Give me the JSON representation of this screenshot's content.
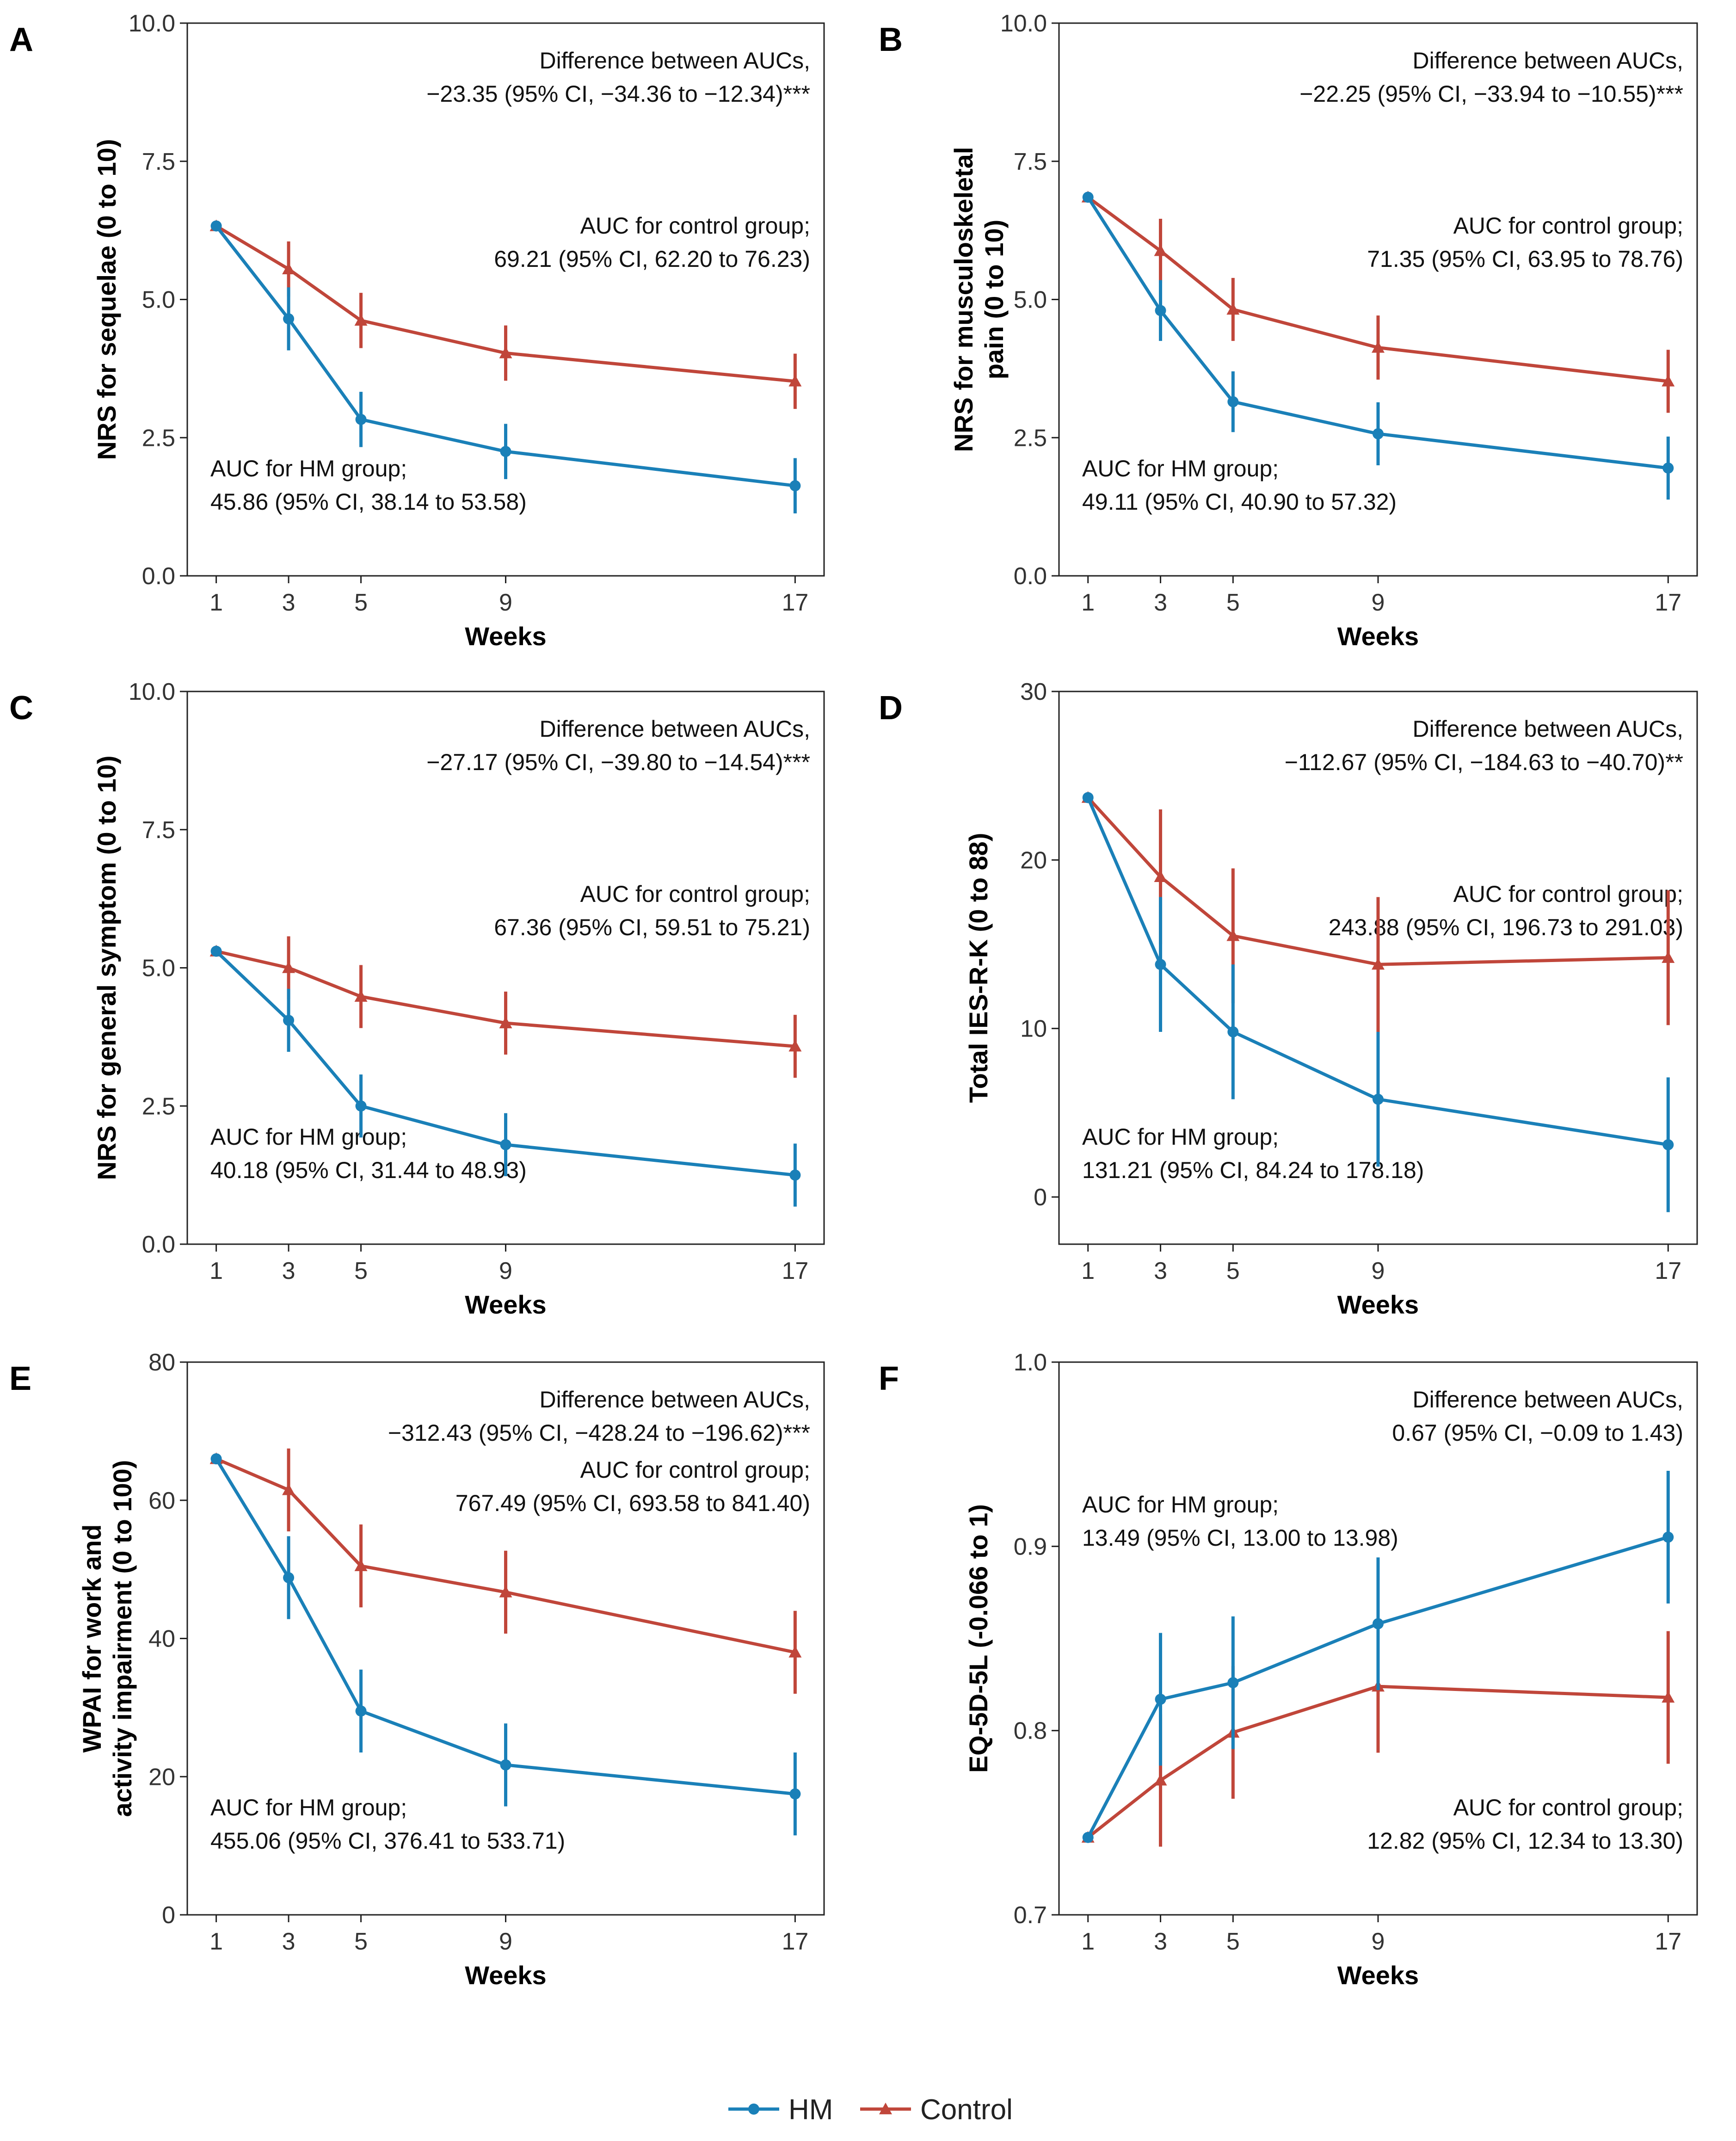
{
  "colors": {
    "hm": "#1a80b8",
    "control": "#c0463a",
    "axis": "#222222"
  },
  "legend": [
    {
      "key": "hm",
      "label": "HM",
      "marker": "circle"
    },
    {
      "key": "control",
      "label": "Control",
      "marker": "triangle"
    }
  ],
  "chart_data": [
    {
      "panel": "A",
      "type": "line",
      "xlabel": "Weeks",
      "ylabel": [
        "NRS for sequelae (0 to 10)"
      ],
      "x": [
        1,
        3,
        5,
        9,
        17
      ],
      "xlim": [
        0.2,
        17.8
      ],
      "ylim": [
        0,
        10
      ],
      "yticks": [
        "0.0",
        "2.5",
        "5.0",
        "7.5",
        "10.0"
      ],
      "ytick_values": [
        0,
        2.5,
        5,
        7.5,
        10
      ],
      "series": [
        {
          "key": "hm",
          "name": "HM",
          "values": [
            6.33,
            4.65,
            2.83,
            2.25,
            1.63
          ],
          "lower": [
            6.33,
            4.08,
            2.33,
            1.75,
            1.13
          ],
          "upper": [
            6.33,
            5.22,
            3.33,
            2.75,
            2.13
          ]
        },
        {
          "key": "control",
          "name": "Control",
          "values": [
            6.33,
            5.55,
            4.62,
            4.03,
            3.52
          ],
          "lower": [
            6.33,
            5.05,
            4.12,
            3.53,
            3.02
          ],
          "upper": [
            6.33,
            6.05,
            5.12,
            4.53,
            4.02
          ]
        }
      ],
      "annotations": [
        {
          "pos": "top-right",
          "lines": [
            "Difference between AUCs,",
            "−23.35 (95% CI, −34.36 to −12.34)***"
          ]
        },
        {
          "pos": "mid-right",
          "lines": [
            "AUC for control group;",
            "69.21 (95% CI, 62.20 to 76.23)"
          ]
        },
        {
          "pos": "bottom-left",
          "lines": [
            "AUC for HM group;",
            "45.86 (95% CI, 38.14 to 53.58)"
          ]
        }
      ]
    },
    {
      "panel": "B",
      "type": "line",
      "xlabel": "Weeks",
      "ylabel": [
        "NRS for musculoskeletal",
        "pain (0 to 10)"
      ],
      "x": [
        1,
        3,
        5,
        9,
        17
      ],
      "xlim": [
        0.2,
        17.8
      ],
      "ylim": [
        0,
        10
      ],
      "yticks": [
        "0.0",
        "2.5",
        "5.0",
        "7.5",
        "10.0"
      ],
      "ytick_values": [
        0,
        2.5,
        5,
        7.5,
        10
      ],
      "series": [
        {
          "key": "hm",
          "name": "HM",
          "values": [
            6.85,
            4.8,
            3.15,
            2.57,
            1.95
          ],
          "lower": [
            6.85,
            4.25,
            2.6,
            2.0,
            1.38
          ],
          "upper": [
            6.85,
            5.35,
            3.7,
            3.14,
            2.52
          ]
        },
        {
          "key": "control",
          "name": "Control",
          "values": [
            6.85,
            5.88,
            4.82,
            4.13,
            3.52
          ],
          "lower": [
            6.85,
            5.3,
            4.25,
            3.55,
            2.95
          ],
          "upper": [
            6.85,
            6.46,
            5.39,
            4.71,
            4.09
          ]
        }
      ],
      "annotations": [
        {
          "pos": "top-right",
          "lines": [
            "Difference between AUCs,",
            "−22.25 (95% CI, −33.94 to −10.55)***"
          ]
        },
        {
          "pos": "mid-right",
          "lines": [
            "AUC for control group;",
            "71.35 (95% CI, 63.95 to 78.76)"
          ]
        },
        {
          "pos": "bottom-left",
          "lines": [
            "AUC for HM group;",
            "49.11 (95% CI, 40.90 to 57.32)"
          ]
        }
      ]
    },
    {
      "panel": "C",
      "type": "line",
      "xlabel": "Weeks",
      "ylabel": [
        "NRS for general symptom (0 to 10)"
      ],
      "x": [
        1,
        3,
        5,
        9,
        17
      ],
      "xlim": [
        0.2,
        17.8
      ],
      "ylim": [
        0,
        10
      ],
      "yticks": [
        "0.0",
        "2.5",
        "5.0",
        "7.5",
        "10.0"
      ],
      "ytick_values": [
        0,
        2.5,
        5,
        7.5,
        10
      ],
      "series": [
        {
          "key": "hm",
          "name": "HM",
          "values": [
            5.3,
            4.05,
            2.5,
            1.8,
            1.25
          ],
          "lower": [
            5.3,
            3.48,
            1.93,
            1.23,
            0.68
          ],
          "upper": [
            5.3,
            4.62,
            3.07,
            2.37,
            1.82
          ]
        },
        {
          "key": "control",
          "name": "Control",
          "values": [
            5.3,
            5.0,
            4.48,
            4.0,
            3.58
          ],
          "lower": [
            5.3,
            4.43,
            3.91,
            3.43,
            3.01
          ],
          "upper": [
            5.3,
            5.57,
            5.05,
            4.57,
            4.15
          ]
        }
      ],
      "annotations": [
        {
          "pos": "top-right",
          "lines": [
            "Difference between AUCs,",
            "−27.17 (95% CI, −39.80 to −14.54)***"
          ]
        },
        {
          "pos": "mid-right",
          "lines": [
            "AUC for control group;",
            "67.36 (95% CI, 59.51 to 75.21)"
          ]
        },
        {
          "pos": "bottom-left",
          "lines": [
            "AUC for HM group;",
            "40.18 (95% CI, 31.44 to 48.93)"
          ]
        }
      ]
    },
    {
      "panel": "D",
      "type": "line",
      "xlabel": "Weeks",
      "ylabel": [
        "Total IES-R-K (0 to 88)"
      ],
      "x": [
        1,
        3,
        5,
        9,
        17
      ],
      "xlim": [
        0.2,
        17.8
      ],
      "ylim": [
        -2.8,
        30
      ],
      "yticks": [
        "0",
        "10",
        "20",
        "30"
      ],
      "ytick_values": [
        0,
        10,
        20,
        30
      ],
      "series": [
        {
          "key": "hm",
          "name": "HM",
          "values": [
            23.7,
            13.8,
            9.8,
            5.8,
            3.1
          ],
          "lower": [
            23.7,
            9.8,
            5.8,
            1.8,
            -0.9
          ],
          "upper": [
            23.7,
            17.8,
            13.8,
            9.8,
            7.1
          ]
        },
        {
          "key": "control",
          "name": "Control",
          "values": [
            23.7,
            19.0,
            15.5,
            13.8,
            14.2
          ],
          "lower": [
            23.7,
            15.0,
            11.5,
            9.8,
            10.2
          ],
          "upper": [
            23.7,
            23.0,
            19.5,
            17.8,
            18.2
          ]
        }
      ],
      "annotations": [
        {
          "pos": "top-right",
          "lines": [
            "Difference between AUCs,",
            "−112.67 (95% CI, −184.63 to −40.70)**"
          ]
        },
        {
          "pos": "mid-right",
          "lines": [
            "AUC for control group;",
            "243.88 (95% CI, 196.73 to 291.03)"
          ]
        },
        {
          "pos": "bottom-left",
          "lines": [
            "AUC for HM group;",
            "131.21 (95% CI, 84.24 to 178.18)"
          ]
        }
      ]
    },
    {
      "panel": "E",
      "type": "line",
      "xlabel": "Weeks",
      "ylabel": [
        "WPAI for work and",
        "activity impairment (0 to 100)"
      ],
      "x": [
        1,
        3,
        5,
        9,
        17
      ],
      "xlim": [
        0.2,
        17.8
      ],
      "ylim": [
        0,
        80
      ],
      "yticks": [
        "0",
        "20",
        "40",
        "60",
        "80"
      ],
      "ytick_values": [
        0,
        20,
        40,
        60,
        80
      ],
      "series": [
        {
          "key": "hm",
          "name": "HM",
          "values": [
            66.0,
            48.8,
            29.5,
            21.7,
            17.5
          ],
          "lower": [
            66.0,
            42.8,
            23.5,
            15.7,
            11.5
          ],
          "upper": [
            66.0,
            54.8,
            35.5,
            27.7,
            23.5
          ]
        },
        {
          "key": "control",
          "name": "Control",
          "values": [
            66.0,
            61.5,
            50.5,
            46.7,
            38.0
          ],
          "lower": [
            66.0,
            55.5,
            44.5,
            40.7,
            32.0
          ],
          "upper": [
            66.0,
            67.5,
            56.5,
            52.7,
            44.0
          ]
        }
      ],
      "annotations": [
        {
          "pos": "top-right",
          "lines": [
            "Difference between AUCs,",
            "−312.43 (95% CI, −428.24 to −196.62)***"
          ]
        },
        {
          "pos": "upper-right",
          "lines": [
            "AUC for control group;",
            "767.49 (95% CI, 693.58 to 841.40)"
          ]
        },
        {
          "pos": "bottom-left",
          "lines": [
            "AUC for HM group;",
            "455.06 (95% CI, 376.41 to 533.71)"
          ]
        }
      ]
    },
    {
      "panel": "F",
      "type": "line",
      "xlabel": "Weeks",
      "ylabel": [
        "EQ-5D-5L (-0.066 to 1)"
      ],
      "x": [
        1,
        3,
        5,
        9,
        17
      ],
      "xlim": [
        0.2,
        17.8
      ],
      "ylim": [
        0.7,
        1.0
      ],
      "yticks": [
        "0.7",
        "0.8",
        "0.9",
        "1.0"
      ],
      "ytick_values": [
        0.7,
        0.8,
        0.9,
        1.0
      ],
      "series": [
        {
          "key": "hm",
          "name": "HM",
          "values": [
            0.742,
            0.817,
            0.826,
            0.858,
            0.905
          ],
          "lower": [
            0.742,
            0.781,
            0.79,
            0.822,
            0.869
          ],
          "upper": [
            0.742,
            0.853,
            0.862,
            0.894,
            0.941
          ]
        },
        {
          "key": "control",
          "name": "Control",
          "values": [
            0.742,
            0.773,
            0.799,
            0.824,
            0.818
          ],
          "lower": [
            0.742,
            0.737,
            0.763,
            0.788,
            0.782
          ],
          "upper": [
            0.742,
            0.809,
            0.835,
            0.86,
            0.854
          ]
        }
      ],
      "annotations": [
        {
          "pos": "top-right",
          "lines": [
            "Difference between AUCs,",
            "0.67 (95% CI, −0.09 to 1.43)"
          ]
        },
        {
          "pos": "upper-left",
          "lines": [
            "AUC for HM group;",
            "13.49 (95% CI, 13.00 to 13.98)"
          ]
        },
        {
          "pos": "bottom-right",
          "lines": [
            "AUC for control group;",
            "12.82 (95% CI, 12.34 to 13.30)"
          ]
        }
      ]
    }
  ]
}
